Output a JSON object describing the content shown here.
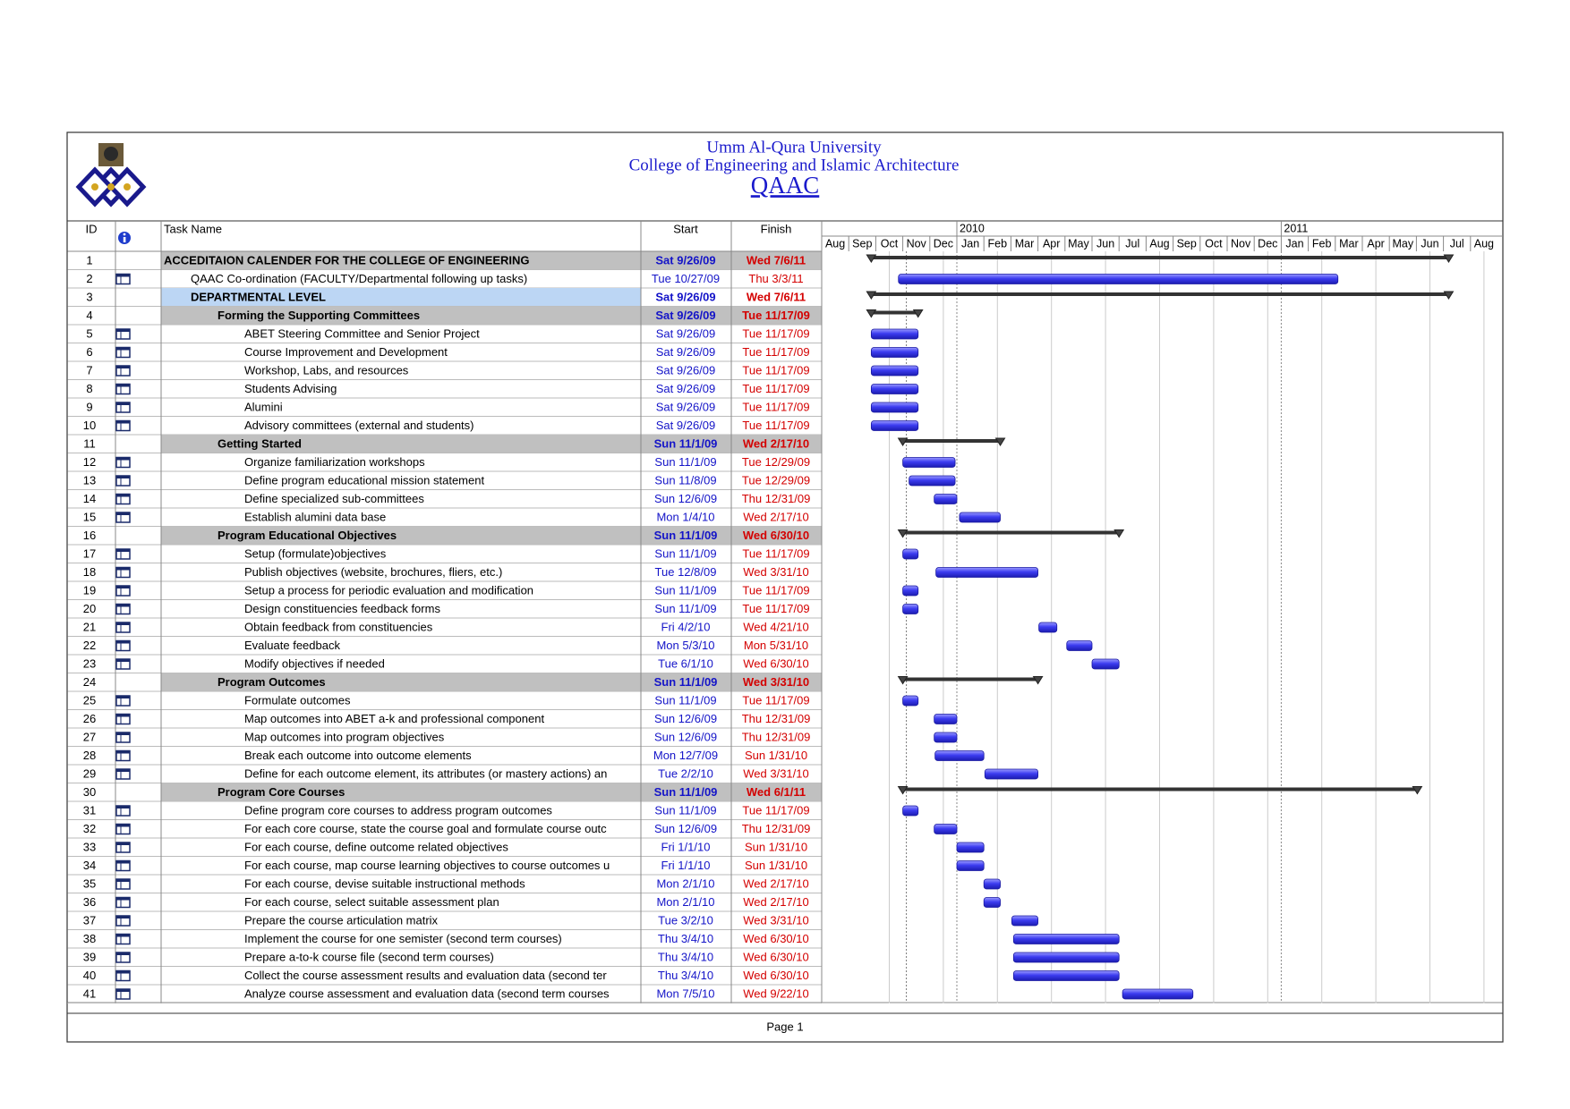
{
  "header": {
    "title": "Umm Al-Qura University",
    "subtitle": "College of Engineering and Islamic Architecture",
    "name": "QAAC"
  },
  "table": {
    "columns": {
      "id": "ID",
      "name": "Task Name",
      "start": "Start",
      "finish": "Finish"
    },
    "rows": [
      {
        "id": 1,
        "name": "ACCEDITAION CALENDER FOR THE COLLEGE OF ENGINEERING",
        "start": "Sat 9/26/09",
        "finish": "Wed 7/6/11",
        "level": 0,
        "summary": true
      },
      {
        "id": 2,
        "name": "QAAC Co-ordination (FACULTY/Departmental following up tasks)",
        "start": "Tue 10/27/09",
        "finish": "Thu 3/3/11",
        "level": 1,
        "summary": false
      },
      {
        "id": 3,
        "name": "DEPARTMENTAL LEVEL",
        "start": "Sat 9/26/09",
        "finish": "Wed 7/6/11",
        "level": 1,
        "summary": true,
        "selected": true
      },
      {
        "id": 4,
        "name": "Forming the Supporting Committees",
        "start": "Sat 9/26/09",
        "finish": "Tue 11/17/09",
        "level": 2,
        "summary": true
      },
      {
        "id": 5,
        "name": "ABET Steering Committee and Senior Project",
        "start": "Sat 9/26/09",
        "finish": "Tue 11/17/09",
        "level": 3,
        "summary": false
      },
      {
        "id": 6,
        "name": "Course Improvement and Development",
        "start": "Sat 9/26/09",
        "finish": "Tue 11/17/09",
        "level": 3,
        "summary": false
      },
      {
        "id": 7,
        "name": "Workshop, Labs, and resources",
        "start": "Sat 9/26/09",
        "finish": "Tue 11/17/09",
        "level": 3,
        "summary": false
      },
      {
        "id": 8,
        "name": "Students Advising",
        "start": "Sat 9/26/09",
        "finish": "Tue 11/17/09",
        "level": 3,
        "summary": false
      },
      {
        "id": 9,
        "name": "Alumini",
        "start": "Sat 9/26/09",
        "finish": "Tue 11/17/09",
        "level": 3,
        "summary": false
      },
      {
        "id": 10,
        "name": "Advisory committees (external and students)",
        "start": "Sat 9/26/09",
        "finish": "Tue 11/17/09",
        "level": 3,
        "summary": false
      },
      {
        "id": 11,
        "name": "Getting Started",
        "start": "Sun 11/1/09",
        "finish": "Wed 2/17/10",
        "level": 2,
        "summary": true
      },
      {
        "id": 12,
        "name": "Organize familiarization workshops",
        "start": "Sun 11/1/09",
        "finish": "Tue 12/29/09",
        "level": 3,
        "summary": false
      },
      {
        "id": 13,
        "name": "Define program educational mission statement",
        "start": "Sun 11/8/09",
        "finish": "Tue 12/29/09",
        "level": 3,
        "summary": false
      },
      {
        "id": 14,
        "name": "Define specialized sub-committees",
        "start": "Sun 12/6/09",
        "finish": "Thu 12/31/09",
        "level": 3,
        "summary": false
      },
      {
        "id": 15,
        "name": "Establish alumini data base",
        "start": "Mon 1/4/10",
        "finish": "Wed 2/17/10",
        "level": 3,
        "summary": false
      },
      {
        "id": 16,
        "name": "Program Educational Objectives",
        "start": "Sun 11/1/09",
        "finish": "Wed 6/30/10",
        "level": 2,
        "summary": true
      },
      {
        "id": 17,
        "name": "Setup (formulate)objectives",
        "start": "Sun 11/1/09",
        "finish": "Tue 11/17/09",
        "level": 3,
        "summary": false
      },
      {
        "id": 18,
        "name": "Publish objectives (website, brochures, fliers, etc.)",
        "start": "Tue 12/8/09",
        "finish": "Wed 3/31/10",
        "level": 3,
        "summary": false
      },
      {
        "id": 19,
        "name": "Setup a process for periodic evaluation and modification",
        "start": "Sun 11/1/09",
        "finish": "Tue 11/17/09",
        "level": 3,
        "summary": false
      },
      {
        "id": 20,
        "name": "Design constituencies feedback forms",
        "start": "Sun 11/1/09",
        "finish": "Tue 11/17/09",
        "level": 3,
        "summary": false
      },
      {
        "id": 21,
        "name": "Obtain feedback from constituencies",
        "start": "Fri 4/2/10",
        "finish": "Wed 4/21/10",
        "level": 3,
        "summary": false
      },
      {
        "id": 22,
        "name": "Evaluate feedback",
        "start": "Mon 5/3/10",
        "finish": "Mon 5/31/10",
        "level": 3,
        "summary": false
      },
      {
        "id": 23,
        "name": "Modify objectives if needed",
        "start": "Tue 6/1/10",
        "finish": "Wed 6/30/10",
        "level": 3,
        "summary": false
      },
      {
        "id": 24,
        "name": "Program Outcomes",
        "start": "Sun 11/1/09",
        "finish": "Wed 3/31/10",
        "level": 2,
        "summary": true
      },
      {
        "id": 25,
        "name": "Formulate outcomes",
        "start": "Sun 11/1/09",
        "finish": "Tue 11/17/09",
        "level": 3,
        "summary": false
      },
      {
        "id": 26,
        "name": "Map outcomes into ABET a-k and professional component",
        "start": "Sun 12/6/09",
        "finish": "Thu 12/31/09",
        "level": 3,
        "summary": false
      },
      {
        "id": 27,
        "name": "Map outcomes into program objectives",
        "start": "Sun 12/6/09",
        "finish": "Thu 12/31/09",
        "level": 3,
        "summary": false
      },
      {
        "id": 28,
        "name": "Break each outcome into outcome elements",
        "start": "Mon 12/7/09",
        "finish": "Sun 1/31/10",
        "level": 3,
        "summary": false
      },
      {
        "id": 29,
        "name": "Define for each outcome element, its attributes (or mastery actions) an",
        "start": "Tue 2/2/10",
        "finish": "Wed 3/31/10",
        "level": 3,
        "summary": false
      },
      {
        "id": 30,
        "name": "Program Core Courses",
        "start": "Sun 11/1/09",
        "finish": "Wed 6/1/11",
        "level": 2,
        "summary": true
      },
      {
        "id": 31,
        "name": "Define program core courses to address program outcomes",
        "start": "Sun 11/1/09",
        "finish": "Tue 11/17/09",
        "level": 3,
        "summary": false
      },
      {
        "id": 32,
        "name": "For each core course, state the course goal and formulate course outc",
        "start": "Sun 12/6/09",
        "finish": "Thu 12/31/09",
        "level": 3,
        "summary": false
      },
      {
        "id": 33,
        "name": "For each course, define outcome related objectives",
        "start": "Fri 1/1/10",
        "finish": "Sun 1/31/10",
        "level": 3,
        "summary": false
      },
      {
        "id": 34,
        "name": "For each course, map course learning objectives to course outcomes u",
        "start": "Fri 1/1/10",
        "finish": "Sun 1/31/10",
        "level": 3,
        "summary": false
      },
      {
        "id": 35,
        "name": "For each course, devise suitable instructional methods",
        "start": "Mon 2/1/10",
        "finish": "Wed 2/17/10",
        "level": 3,
        "summary": false
      },
      {
        "id": 36,
        "name": "For each course, select suitable assessment plan",
        "start": "Mon 2/1/10",
        "finish": "Wed 2/17/10",
        "level": 3,
        "summary": false
      },
      {
        "id": 37,
        "name": "Prepare the course articulation matrix",
        "start": "Tue 3/2/10",
        "finish": "Wed 3/31/10",
        "level": 3,
        "summary": false
      },
      {
        "id": 38,
        "name": "Implement the course for one semister (second term courses)",
        "start": "Thu 3/4/10",
        "finish": "Wed 6/30/10",
        "level": 3,
        "summary": false
      },
      {
        "id": 39,
        "name": "Prepare a-to-k course file (second term courses)",
        "start": "Thu 3/4/10",
        "finish": "Wed 6/30/10",
        "level": 3,
        "summary": false
      },
      {
        "id": 40,
        "name": "Collect the course assessment results and evaluation data (second ter",
        "start": "Thu 3/4/10",
        "finish": "Wed 6/30/10",
        "level": 3,
        "summary": false
      },
      {
        "id": 41,
        "name": "Analyze course assessment and evaluation data (second term courses",
        "start": "Mon 7/5/10",
        "finish": "Wed 9/22/10",
        "level": 3,
        "summary": false
      }
    ]
  },
  "timeline": {
    "years": [
      2010,
      2011
    ],
    "months": [
      "Aug",
      "Sep",
      "Oct",
      "Nov",
      "Dec",
      "Jan",
      "Feb",
      "Mar",
      "Apr",
      "May",
      "Jun",
      "Jul",
      "Aug",
      "Sep",
      "Oct",
      "Nov",
      "Dec",
      "Jan",
      "Feb",
      "Mar",
      "Apr",
      "May",
      "Jun",
      "Jul",
      "Aug"
    ]
  },
  "footer": "Page 1"
}
